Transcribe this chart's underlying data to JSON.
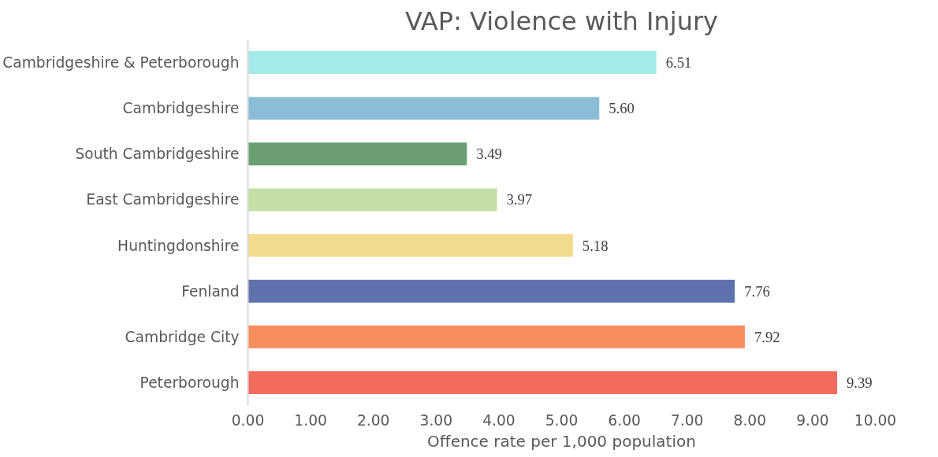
{
  "chart_data": {
    "type": "bar",
    "orientation": "horizontal",
    "title": "VAP: Violence with Injury",
    "xlabel": "Offence rate per 1,000 population",
    "categories": [
      "Cambridgeshire & Peterborough",
      "Cambridgeshire",
      "South Cambridgeshire",
      "East Cambridgeshire",
      "Huntingdonshire",
      "Fenland",
      "Cambridge City",
      "Peterborough"
    ],
    "values": [
      6.51,
      5.6,
      3.49,
      3.97,
      5.18,
      7.76,
      7.92,
      9.39
    ],
    "colors": [
      "#a3ebe9",
      "#8bbdd6",
      "#6a9f74",
      "#c4dfa6",
      "#f2db8c",
      "#5f72ad",
      "#f78e5c",
      "#f46a5c"
    ],
    "xlim": [
      0,
      10
    ],
    "xticks": [
      {
        "value": 0,
        "label": "0.00"
      },
      {
        "value": 1,
        "label": "1.00"
      },
      {
        "value": 2,
        "label": "2.00"
      },
      {
        "value": 3,
        "label": "3.00"
      },
      {
        "value": 4,
        "label": "4.00"
      },
      {
        "value": 5,
        "label": "5.00"
      },
      {
        "value": 6,
        "label": "6.00"
      },
      {
        "value": 7,
        "label": "7.00"
      },
      {
        "value": 8,
        "label": "8.00"
      },
      {
        "value": 9,
        "label": "9.00"
      },
      {
        "value": 10,
        "label": "10.00"
      }
    ],
    "value_labels": [
      "6.51",
      "5.60",
      "3.49",
      "3.97",
      "5.18",
      "7.76",
      "7.92",
      "9.39"
    ],
    "grid": false
  }
}
